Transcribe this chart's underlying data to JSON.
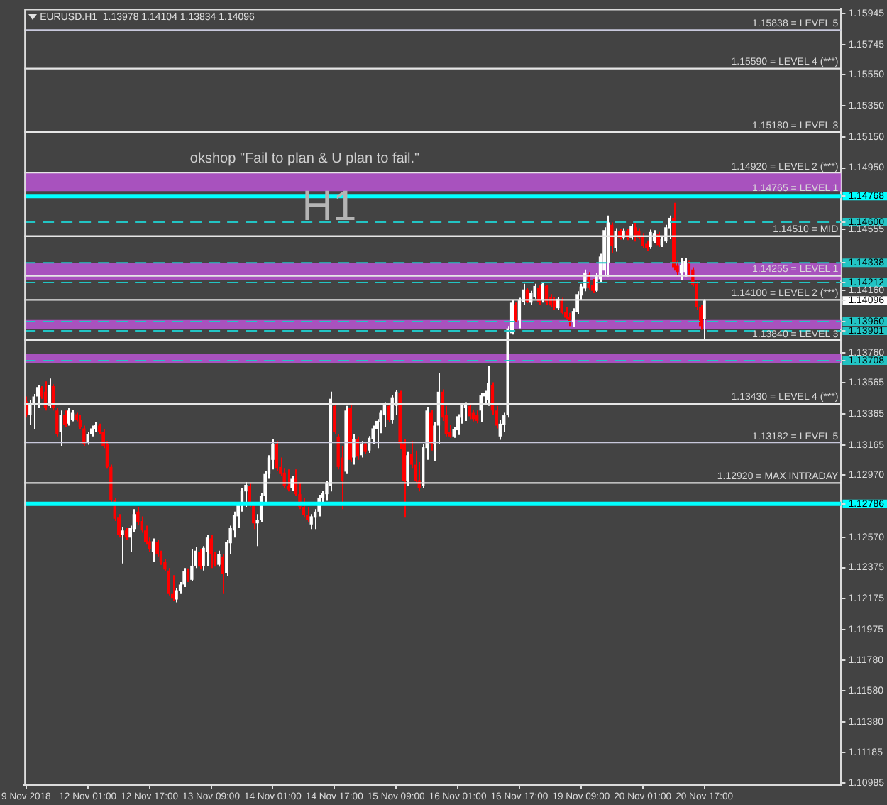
{
  "chart_data": {
    "type": "candlestick",
    "title": "EURUSD.H1  1.13978 1.14104 1.13834 1.14096",
    "annotations": [
      "okshop \"Fail to plan & U plan to fail.\"",
      "H1",
      {
        "text": "1.14765 = LEVEL 1",
        "y": 1.14765
      }
    ],
    "categories": [
      "9 Nov 2018",
      null,
      null,
      null,
      null,
      null,
      null,
      null,
      null,
      null,
      null,
      null,
      null,
      null,
      null,
      null,
      "12 Nov 01:00",
      null,
      null,
      null,
      null,
      null,
      null,
      null,
      null,
      null,
      null,
      null,
      null,
      null,
      null,
      null,
      "12 Nov 17:00",
      null,
      null,
      null,
      null,
      null,
      null,
      null,
      null,
      null,
      null,
      null,
      null,
      null,
      null,
      null,
      "13 Nov 09:00",
      null,
      null,
      null,
      null,
      null,
      null,
      null,
      null,
      null,
      null,
      null,
      null,
      null,
      null,
      null,
      "14 Nov 01:00",
      null,
      null,
      null,
      null,
      null,
      null,
      null,
      null,
      null,
      null,
      null,
      null,
      null,
      null,
      null,
      "14 Nov 17:00",
      null,
      null,
      null,
      null,
      null,
      null,
      null,
      null,
      null,
      null,
      null,
      null,
      null,
      null,
      null,
      "15 Nov 09:00",
      null,
      null,
      null,
      null,
      null,
      null,
      null,
      null,
      null,
      null,
      null,
      null,
      null,
      null,
      null,
      "16 Nov 01:00",
      null,
      null,
      null,
      null,
      null,
      null,
      null,
      null,
      null,
      null,
      null,
      null,
      null,
      null,
      null,
      "16 Nov 17:00",
      null,
      null,
      null,
      null,
      null,
      null,
      null,
      null,
      null,
      null,
      null,
      null,
      null,
      null,
      null,
      "19 Nov 09:00",
      null,
      null,
      null,
      null,
      null,
      null,
      null,
      null,
      null,
      null,
      null,
      null,
      null,
      null,
      null,
      "20 Nov 01:00",
      null,
      null,
      null,
      null,
      null,
      null,
      null,
      null,
      null,
      null,
      null,
      null,
      null,
      null,
      null,
      "20 Nov 17:00",
      null,
      null,
      null,
      null,
      null,
      null,
      null,
      null,
      null,
      null,
      null,
      null,
      null,
      null,
      null,
      null,
      null,
      null,
      null,
      null,
      null,
      null,
      null,
      null,
      null,
      null,
      null,
      null,
      null,
      null,
      null,
      null,
      null,
      null,
      null
    ],
    "ohlc": [
      [
        1.13447,
        1.13478,
        1.13341,
        1.13356
      ],
      [
        1.13356,
        1.13453,
        1.13296,
        1.13432
      ],
      [
        1.13432,
        1.13493,
        1.13266,
        1.13478
      ],
      [
        1.13478,
        1.13553,
        1.13402,
        1.13538
      ],
      [
        1.13532,
        1.13544,
        1.13463,
        1.13478
      ],
      [
        1.13508,
        1.13575,
        1.13387,
        1.13402
      ],
      [
        1.13417,
        1.13593,
        1.13402,
        1.13553
      ],
      [
        1.13544,
        1.13556,
        1.13387,
        1.13402
      ],
      [
        1.13387,
        1.13402,
        1.1322,
        1.13235
      ],
      [
        1.13251,
        1.13387,
        1.1316,
        1.13356
      ],
      [
        1.13356,
        1.13387,
        1.13281,
        1.13296
      ],
      [
        1.13302,
        1.13402,
        1.1329,
        1.13387
      ],
      [
        1.13326,
        1.13393,
        1.13317,
        1.13372
      ],
      [
        1.13363,
        1.13372,
        1.13317,
        1.13326
      ],
      [
        1.13326,
        1.13356,
        1.13266,
        1.13281
      ],
      [
        1.13272,
        1.1329,
        1.1316,
        1.13169
      ],
      [
        1.13181,
        1.13251,
        1.13166,
        1.13235
      ],
      [
        1.13235,
        1.1329,
        1.1322,
        1.13272
      ],
      [
        1.13266,
        1.13311,
        1.13247,
        1.13296
      ],
      [
        1.1329,
        1.13302,
        1.13235,
        1.13251
      ],
      [
        1.13251,
        1.13266,
        1.13145,
        1.1316
      ],
      [
        1.13169,
        1.1319,
        1.13017,
        1.13023
      ],
      [
        1.13023,
        1.13038,
        1.12796,
        1.12811
      ],
      [
        1.12811,
        1.12826,
        1.12675,
        1.1269
      ],
      [
        1.12696,
        1.1272,
        1.12569,
        1.12584
      ],
      [
        1.12584,
        1.12635,
        1.12402,
        1.12614
      ],
      [
        1.12614,
        1.12629,
        1.12553,
        1.12569
      ],
      [
        1.12569,
        1.12645,
        1.12478,
        1.12629
      ],
      [
        1.12623,
        1.12751,
        1.12605,
        1.1272
      ],
      [
        1.12735,
        1.12766,
        1.1265,
        1.12666
      ],
      [
        1.12675,
        1.12705,
        1.12599,
        1.12614
      ],
      [
        1.12614,
        1.12645,
        1.12523,
        1.12538
      ],
      [
        1.12544,
        1.12569,
        1.12478,
        1.12493
      ],
      [
        1.12478,
        1.12563,
        1.12411,
        1.12544
      ],
      [
        1.12538,
        1.12553,
        1.12447,
        1.12463
      ],
      [
        1.12463,
        1.12484,
        1.12393,
        1.12411
      ],
      [
        1.12411,
        1.12432,
        1.1235,
        1.12363
      ],
      [
        1.12356,
        1.12372,
        1.12196,
        1.12205
      ],
      [
        1.12205,
        1.12326,
        1.1216,
        1.12175
      ],
      [
        1.12169,
        1.12241,
        1.12151,
        1.12229
      ],
      [
        1.12223,
        1.12281,
        1.12205,
        1.12266
      ],
      [
        1.12266,
        1.12372,
        1.1225,
        1.1235
      ],
      [
        1.1235,
        1.12369,
        1.12281,
        1.12296
      ],
      [
        1.12296,
        1.12493,
        1.12287,
        1.12387
      ],
      [
        1.12387,
        1.12508,
        1.12372,
        1.12484
      ],
      [
        1.12478,
        1.12493,
        1.12363,
        1.12381
      ],
      [
        1.12387,
        1.12514,
        1.12356,
        1.12502
      ],
      [
        1.12478,
        1.12584,
        1.12387,
        1.12569
      ],
      [
        1.12563,
        1.12584,
        1.12372,
        1.12463
      ],
      [
        1.12463,
        1.12478,
        1.12381,
        1.12393
      ],
      [
        1.12393,
        1.12484,
        1.12381,
        1.12463
      ],
      [
        1.12447,
        1.12463,
        1.12205,
        1.12332
      ],
      [
        1.12341,
        1.12553,
        1.1232,
        1.12538
      ],
      [
        1.12532,
        1.12645,
        1.12463,
        1.12629
      ],
      [
        1.12614,
        1.12735,
        1.12569,
        1.12714
      ],
      [
        1.12705,
        1.12796,
        1.12629,
        1.12781
      ],
      [
        1.12775,
        1.12887,
        1.12735,
        1.12872
      ],
      [
        1.12866,
        1.12926,
        1.12766,
        1.12908
      ],
      [
        1.12902,
        1.12917,
        1.12766,
        1.12781
      ],
      [
        1.12781,
        1.12796,
        1.12623,
        1.1266
      ],
      [
        1.1266,
        1.1272,
        1.12514,
        1.12684
      ],
      [
        1.12684,
        1.12854,
        1.12666,
        1.12835
      ],
      [
        1.12835,
        1.12999,
        1.12775,
        1.12978
      ],
      [
        1.12978,
        1.13099,
        1.12947,
        1.13084
      ],
      [
        1.13069,
        1.13205,
        1.13008,
        1.13169
      ],
      [
        1.13169,
        1.1319,
        1.12999,
        1.13017
      ],
      [
        1.13023,
        1.13084,
        1.12963,
        1.12978
      ],
      [
        1.12987,
        1.13017,
        1.12887,
        1.12902
      ],
      [
        1.12902,
        1.13008,
        1.12866,
        1.12878
      ],
      [
        1.12887,
        1.12963,
        1.12872,
        1.12947
      ],
      [
        1.12947,
        1.13008,
        1.12835,
        1.12848
      ],
      [
        1.12848,
        1.12917,
        1.12751,
        1.12766
      ],
      [
        1.12766,
        1.12826,
        1.12696,
        1.12714
      ],
      [
        1.12714,
        1.12766,
        1.12666,
        1.12684
      ],
      [
        1.12653,
        1.1272,
        1.12623,
        1.12705
      ],
      [
        1.12696,
        1.12751,
        1.12623,
        1.12735
      ],
      [
        1.12735,
        1.12841,
        1.12705,
        1.12826
      ],
      [
        1.12826,
        1.12872,
        1.12787,
        1.12857
      ],
      [
        1.12848,
        1.12932,
        1.12805,
        1.12917
      ],
      [
        1.12902,
        1.13508,
        1.12866,
        1.13463
      ],
      [
        1.13417,
        1.13432,
        1.13235,
        1.13251
      ],
      [
        1.1322,
        1.13235,
        1.13008,
        1.13023
      ],
      [
        1.13084,
        1.1316,
        1.12751,
        1.12932
      ],
      [
        1.12993,
        1.13417,
        1.12978,
        1.13387
      ],
      [
        1.13402,
        1.13423,
        1.13054,
        1.13069
      ],
      [
        1.13084,
        1.13235,
        1.13038,
        1.13205
      ],
      [
        1.13205,
        1.1322,
        1.13069,
        1.1309
      ],
      [
        1.13099,
        1.1319,
        1.13084,
        1.13175
      ],
      [
        1.13169,
        1.13181,
        1.13108,
        1.1312
      ],
      [
        1.13129,
        1.13223,
        1.13114,
        1.13211
      ],
      [
        1.13205,
        1.1329,
        1.13169,
        1.13272
      ],
      [
        1.13266,
        1.13332,
        1.13145,
        1.1332
      ],
      [
        1.13311,
        1.13387,
        1.13241,
        1.13372
      ],
      [
        1.13356,
        1.13441,
        1.13281,
        1.13423
      ],
      [
        1.13417,
        1.13432,
        1.13311,
        1.13326
      ],
      [
        1.13326,
        1.13484,
        1.13302,
        1.13472
      ],
      [
        1.13417,
        1.13517,
        1.13356,
        1.13508
      ],
      [
        1.13502,
        1.13514,
        1.13138,
        1.13175
      ],
      [
        1.13175,
        1.13205,
        1.12696,
        1.12932
      ],
      [
        1.12932,
        1.1312,
        1.12902,
        1.13099
      ],
      [
        1.13108,
        1.1319,
        1.13017,
        1.13038
      ],
      [
        1.13038,
        1.13129,
        1.12917,
        1.12932
      ],
      [
        1.12938,
        1.13054,
        1.12866,
        1.12887
      ],
      [
        1.12902,
        1.13169,
        1.12887,
        1.1315
      ],
      [
        1.13145,
        1.13411,
        1.13069,
        1.13387
      ],
      [
        1.13372,
        1.13393,
        1.13129,
        1.13175
      ],
      [
        1.13169,
        1.13311,
        1.1306,
        1.1329
      ],
      [
        1.1329,
        1.13629,
        1.13169,
        1.13508
      ],
      [
        1.13508,
        1.13523,
        1.1332,
        1.13341
      ],
      [
        1.13356,
        1.13417,
        1.1322,
        1.13235
      ],
      [
        1.13251,
        1.13296,
        1.13211,
        1.1322
      ],
      [
        1.1322,
        1.13281,
        1.13211,
        1.13266
      ],
      [
        1.1326,
        1.13363,
        1.13229,
        1.1335
      ],
      [
        1.13341,
        1.13435,
        1.13302,
        1.13423
      ],
      [
        1.13402,
        1.13441,
        1.1332,
        1.13432
      ],
      [
        1.13417,
        1.13429,
        1.13332,
        1.1335
      ],
      [
        1.13372,
        1.13393,
        1.13317,
        1.13332
      ],
      [
        1.13356,
        1.13387,
        1.13305,
        1.1332
      ],
      [
        1.13387,
        1.13502,
        1.13311,
        1.13484
      ],
      [
        1.13478,
        1.13514,
        1.13423,
        1.13502
      ],
      [
        1.13453,
        1.13675,
        1.13417,
        1.13563
      ],
      [
        1.13553,
        1.13569,
        1.13356,
        1.13387
      ],
      [
        1.13387,
        1.13417,
        1.13272,
        1.1329
      ],
      [
        1.1322,
        1.13326,
        1.13199,
        1.13302
      ],
      [
        1.13296,
        1.13372,
        1.13247,
        1.13356
      ],
      [
        1.13356,
        1.13931,
        1.13341,
        1.13916
      ],
      [
        1.13885,
        1.14097,
        1.13876,
        1.14082
      ],
      [
        1.14067,
        1.14082,
        1.13955,
        1.13967
      ],
      [
        1.13967,
        1.14113,
        1.13916,
        1.14097
      ],
      [
        1.14088,
        1.14204,
        1.14067,
        1.14167
      ],
      [
        1.14167,
        1.14179,
        1.14079,
        1.14088
      ],
      [
        1.14082,
        1.14158,
        1.1407,
        1.14143
      ],
      [
        1.14119,
        1.14204,
        1.14107,
        1.14189
      ],
      [
        1.1418,
        1.14192,
        1.1407,
        1.14088
      ],
      [
        1.14097,
        1.14216,
        1.14082,
        1.14204
      ],
      [
        1.14189,
        1.14198,
        1.1407,
        1.14088
      ],
      [
        1.14119,
        1.14137,
        1.14052,
        1.14064
      ],
      [
        1.14097,
        1.14119,
        1.14037,
        1.14052
      ],
      [
        1.14046,
        1.14119,
        1.14034,
        1.14107
      ],
      [
        1.14097,
        1.14113,
        1.14004,
        1.14016
      ],
      [
        1.14022,
        1.14052,
        1.13973,
        1.13985
      ],
      [
        1.13991,
        1.14016,
        1.13931,
        1.13955
      ],
      [
        1.13955,
        1.14046,
        1.13925,
        1.14028
      ],
      [
        1.14022,
        1.14155,
        1.1401,
        1.14137
      ],
      [
        1.14128,
        1.14204,
        1.14097,
        1.14186
      ],
      [
        1.14173,
        1.14295,
        1.14155,
        1.14276
      ],
      [
        1.14264,
        1.14279,
        1.14167,
        1.1418
      ],
      [
        1.14198,
        1.14234,
        1.14143,
        1.14158
      ],
      [
        1.14158,
        1.14276,
        1.14149,
        1.14258
      ],
      [
        1.14234,
        1.14397,
        1.14216,
        1.14379
      ],
      [
        1.14288,
        1.14567,
        1.14258,
        1.14549
      ],
      [
        1.1434,
        1.14643,
        1.14249,
        1.14598
      ],
      [
        1.14583,
        1.14598,
        1.14401,
        1.14446
      ],
      [
        1.14431,
        1.14561,
        1.1441,
        1.14543
      ],
      [
        1.14543,
        1.14555,
        1.14488,
        1.14501
      ],
      [
        1.14501,
        1.14561,
        1.14488,
        1.14546
      ],
      [
        1.14543,
        1.14555,
        1.14485,
        1.14501
      ],
      [
        1.14501,
        1.14586,
        1.14488,
        1.14573
      ],
      [
        1.14567,
        1.14598,
        1.14476,
        1.14519
      ],
      [
        1.14543,
        1.14561,
        1.14488,
        1.14501
      ],
      [
        1.14513,
        1.14531,
        1.14431,
        1.14446
      ],
      [
        1.14461,
        1.14482,
        1.14416,
        1.14431
      ],
      [
        1.1444,
        1.14552,
        1.14428,
        1.14537
      ],
      [
        1.14476,
        1.14549,
        1.14464,
        1.14531
      ],
      [
        1.14522,
        1.14537,
        1.1444,
        1.14452
      ],
      [
        1.14452,
        1.14507,
        1.1444,
        1.14492
      ],
      [
        1.14476,
        1.14583,
        1.14464,
        1.14567
      ],
      [
        1.14561,
        1.14643,
        1.14492,
        1.14628
      ],
      [
        1.14628,
        1.14725,
        1.14288,
        1.1431
      ],
      [
        1.14319,
        1.14355,
        1.14258,
        1.14279
      ],
      [
        1.1427,
        1.1437,
        1.14228,
        1.14325
      ],
      [
        1.14279,
        1.1437,
        1.14249,
        1.14349
      ],
      [
        1.1434,
        1.14355,
        1.14249,
        1.14288
      ],
      [
        1.14295,
        1.1431,
        1.14186,
        1.14198
      ],
      [
        1.14204,
        1.14219,
        1.14037,
        1.14052
      ],
      [
        1.14052,
        1.14067,
        1.13907,
        1.13931
      ],
      [
        1.13978,
        1.14104,
        1.13834,
        1.14096
      ],
      null,
      null,
      null,
      null,
      null,
      null,
      null,
      null,
      null,
      null,
      null,
      null,
      null,
      null,
      null,
      null,
      null,
      null,
      null,
      null,
      null,
      null,
      null,
      null,
      null,
      null,
      null,
      null,
      null,
      null,
      null,
      null,
      null,
      null,
      null
    ],
    "colors": [
      "#ff0000",
      "#ffffff",
      "#ffffff",
      "#ffffff",
      "#ff0000",
      "#ff0000",
      "#ffffff",
      "#ff0000",
      "#ff0000",
      "#ffffff",
      "#ff0000",
      "#ffffff",
      "#ffffff",
      "#ff0000",
      "#ff0000",
      "#ff0000",
      "#ffffff",
      "#ffffff",
      "#ffffff",
      "#ff0000",
      "#ff0000",
      "#ff0000",
      "#ff0000",
      "#ff0000",
      "#ff0000",
      "#ffffff",
      "#ff0000",
      "#ffffff",
      "#ffffff",
      "#ff0000",
      "#ff0000",
      "#ff0000",
      "#ff0000",
      "#ffffff",
      "#ff0000",
      "#ff0000",
      "#ff0000",
      "#ff0000",
      "#ff0000",
      "#ffffff",
      "#ffffff",
      "#ffffff",
      "#ff0000",
      "#ffffff",
      "#ffffff",
      "#ff0000",
      "#ffffff",
      "#ffffff",
      "#ff0000",
      "#ff0000",
      "#ffffff",
      "#ff0000",
      "#ffffff",
      "#ffffff",
      "#ffffff",
      "#ffffff",
      "#ffffff",
      "#ffffff",
      "#ff0000",
      "#ff0000",
      "#ffffff",
      "#ffffff",
      "#ffffff",
      "#ffffff",
      "#ffffff",
      "#ff0000",
      "#ff0000",
      "#ff0000",
      "#ff0000",
      "#ffffff",
      "#ff0000",
      "#ff0000",
      "#ff0000",
      "#ff0000",
      "#ffffff",
      "#ffffff",
      "#ffffff",
      "#ffffff",
      "#ffffff",
      "#ffffff",
      "#ff0000",
      "#ff0000",
      "#ff0000",
      "#ffffff",
      "#ff0000",
      "#ffffff",
      "#ff0000",
      "#ffffff",
      "#ff0000",
      "#ffffff",
      "#ffffff",
      "#ffffff",
      "#ffffff",
      "#ffffff",
      "#ff0000",
      "#ffffff",
      "#ffffff",
      "#ff0000",
      "#ff0000",
      "#ffffff",
      "#ff0000",
      "#ff0000",
      "#ff0000",
      "#ffffff",
      "#ffffff",
      "#ff0000",
      "#ffffff",
      "#ffffff",
      "#ff0000",
      "#ff0000",
      "#ff0000",
      "#ffffff",
      "#ffffff",
      "#ffffff",
      "#ffffff",
      "#ff0000",
      "#ff0000",
      "#ff0000",
      "#ffffff",
      "#ffffff",
      "#ffffff",
      "#ff0000",
      "#ff0000",
      "#ffffff",
      "#ffffff",
      "#ffffff",
      "#ffffff",
      "#ff0000",
      "#ffffff",
      "#ffffff",
      "#ff0000",
      "#ffffff",
      "#ffffff",
      "#ff0000",
      "#ffffff",
      "#ff0000",
      "#ff0000",
      "#ff0000",
      "#ffffff",
      "#ff0000",
      "#ff0000",
      "#ff0000",
      "#ffffff",
      "#ffffff",
      "#ffffff",
      "#ffffff",
      "#ff0000",
      "#ff0000",
      "#ffffff",
      "#ffffff",
      "#ffffff",
      "#ffffff",
      "#ff0000",
      "#ffffff",
      "#ff0000",
      "#ffffff",
      "#ff0000",
      "#ffffff",
      "#ff0000",
      "#ff0000",
      "#ff0000",
      "#ff0000",
      "#ffffff",
      "#ffffff",
      "#ff0000",
      "#ffffff",
      "#ffffff",
      "#ffffff",
      "#ff0000",
      "#ff0000",
      "#ffffff",
      "#ffffff",
      "#ff0000",
      "#ff0000",
      "#ff0000",
      "#ff0000",
      "#ffffff",
      null,
      null,
      null,
      null,
      null,
      null,
      null,
      null,
      null,
      null,
      null,
      null,
      null,
      null,
      null,
      null,
      null,
      null,
      null,
      null,
      null,
      null,
      null,
      null,
      null,
      null,
      null,
      null,
      null,
      null,
      null,
      null,
      null,
      null,
      null
    ],
    "ylim": [
      1.10975,
      1.15975
    ],
    "yticks": [
      1.10985,
      1.11185,
      {
        "value": 1.1138,
        "label": "1.11380"
      },
      {
        "value": 1.1158,
        "label": "1.11580"
      },
      {
        "value": 1.1178,
        "label": "1.11780"
      },
      1.11975,
      1.12175,
      1.12375,
      {
        "value": 1.1257,
        "label": "1.12570"
      },
      1.12786,
      {
        "value": 1.1297,
        "label": "1.12970"
      },
      1.13165,
      1.13365,
      1.13565,
      1.13708,
      {
        "value": 1.1376,
        "label": "1.13760"
      },
      1.13901,
      {
        "value": 1.1396,
        "label": "1.13960"
      },
      1.14096,
      {
        "value": 1.1416,
        "label": "1.14160"
      },
      1.14212,
      1.14338,
      1.14555,
      {
        "value": 1.146,
        "label": "1.14600"
      },
      1.14768,
      {
        "value": 1.1495,
        "label": "1.14950"
      },
      {
        "value": 1.1515,
        "label": "1.15150"
      },
      {
        "value": 1.1535,
        "label": "1.15350"
      },
      {
        "value": 1.1555,
        "label": "1.15550"
      },
      1.15745,
      1.15945
    ],
    "bands": [
      {
        "axis": "y",
        "from": 1.148,
        "to": 1.1492,
        "color": "#ba55d3"
      },
      {
        "axis": "y",
        "from": 1.1423,
        "to": 1.1434,
        "color": "#ba55d3"
      },
      {
        "axis": "y",
        "from": 1.1391,
        "to": 1.1397,
        "color": "#ba55d3"
      },
      {
        "axis": "y",
        "from": 1.1369,
        "to": 1.1375,
        "color": "#ba55d3"
      }
    ],
    "ref_lines": [
      {
        "axis": "y",
        "value": 1.15838,
        "label": "1.15838 = LEVEL 5",
        "color": "#c8c8dc"
      },
      {
        "axis": "y",
        "value": 1.1559,
        "label": "1.15590 = LEVEL 4 (***)",
        "color": "#e6e6e6"
      },
      {
        "axis": "y",
        "value": 1.1518,
        "label": "1.15180 = LEVEL 3",
        "color": "#e6e6e6"
      },
      {
        "axis": "y",
        "value": 1.1492,
        "label": "1.14920 = LEVEL 2 (***)",
        "color": "#e6e6e6"
      },
      {
        "axis": "y",
        "value": 1.1451,
        "label": "1.14510 = MID",
        "color": "#e6e6e6"
      },
      {
        "axis": "y",
        "value": 1.14255,
        "label": "1.14255 = LEVEL 1",
        "color": "#e6e6e6"
      },
      {
        "axis": "y",
        "value": 1.141,
        "label": "1.14100 = LEVEL 2 (***)",
        "color": "#e6e6e6"
      },
      {
        "axis": "y",
        "value": 1.1384,
        "label": "1.13840 = LEVEL 3",
        "color": "#e6e6e6"
      },
      {
        "axis": "y",
        "value": 1.1343,
        "label": "1.13430 = LEVEL 4 (***)",
        "color": "#e6e6e6"
      },
      {
        "axis": "y",
        "value": 1.13182,
        "label": "1.13182 = LEVEL 5",
        "color": "#c8c8dc"
      },
      {
        "axis": "y",
        "value": 1.1292,
        "label": "1.12920 = MAX INTRADAY",
        "color": "#e6e6e6"
      },
      {
        "axis": "y",
        "value": 1.14768,
        "color": "#00ffff"
      },
      {
        "axis": "y",
        "value": 1.146,
        "color": "#22c4c4",
        "line_style": "dashed"
      },
      {
        "axis": "y",
        "value": 1.14338,
        "color": "#22c4c4",
        "line_style": "dashed"
      },
      {
        "axis": "y",
        "value": 1.14212,
        "color": "#22c4c4",
        "line_style": "dashed"
      },
      {
        "axis": "y",
        "value": 1.1396,
        "color": "#22c4c4",
        "line_style": "dashed"
      },
      {
        "axis": "y",
        "value": 1.13901,
        "color": "#22c4c4",
        "line_style": "dashed"
      },
      {
        "axis": "y",
        "value": 1.13708,
        "color": "#22c4c4",
        "line_style": "dashed"
      },
      {
        "axis": "y",
        "value": 1.12786,
        "color": "#00ffff"
      }
    ]
  }
}
